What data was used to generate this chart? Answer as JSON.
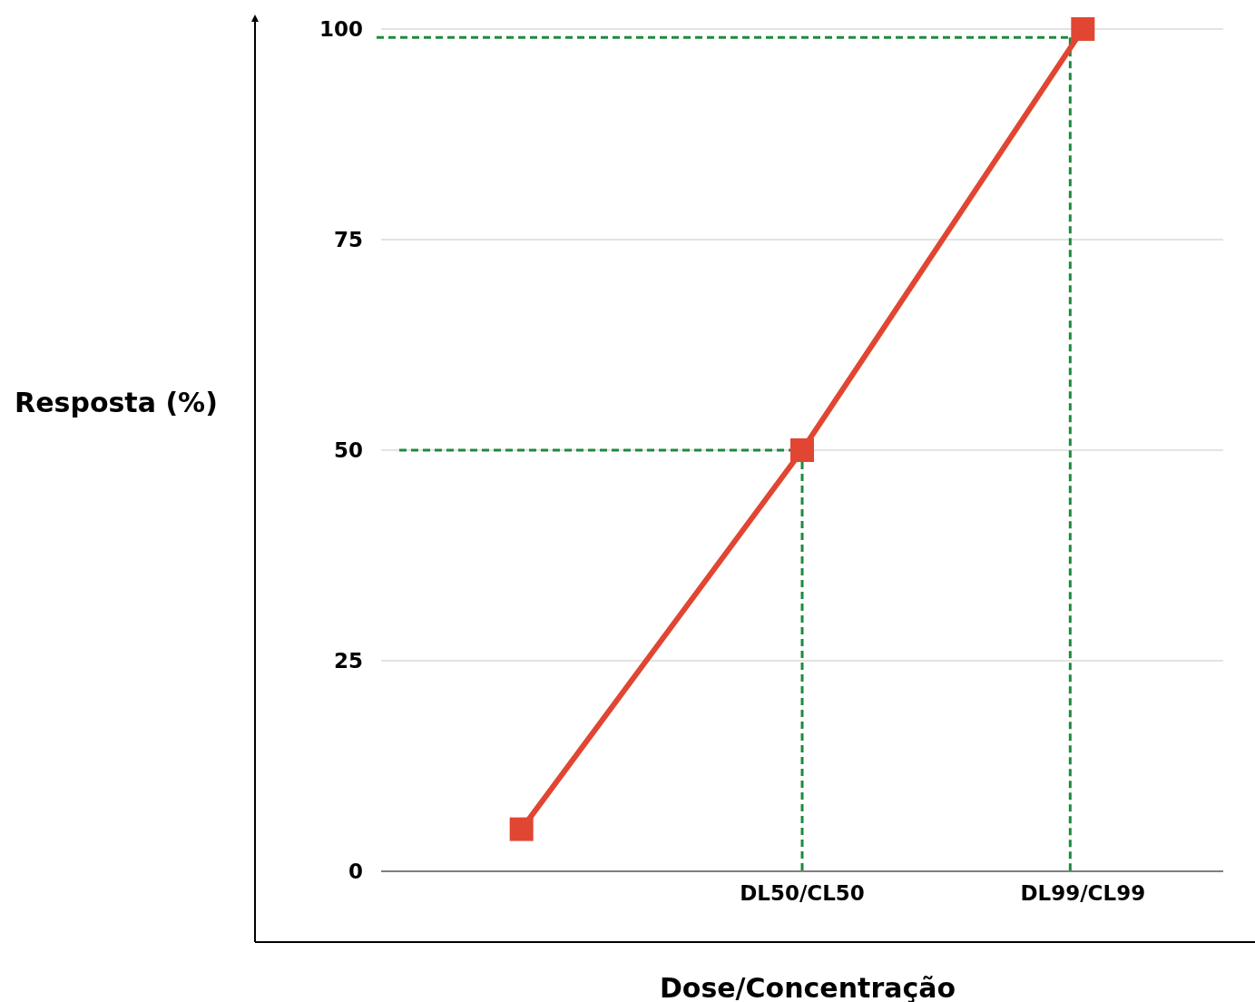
{
  "chart_data": {
    "type": "line",
    "xlabel": "Dose/Concentração",
    "ylabel": "Resposta (%)",
    "categories": [
      null,
      "DL50/CL50",
      "DL99/CL99"
    ],
    "series": [
      {
        "color": "#e04632",
        "values": [
          5,
          50,
          100
        ]
      }
    ],
    "ylim": [
      0,
      100
    ],
    "yticks": [
      0,
      25,
      50,
      75,
      100
    ],
    "grid": "y",
    "marker": "square",
    "line_style": "solid",
    "ref_lines": [
      {
        "axis": "y",
        "value": 50,
        "color": "#1e8a3c",
        "line_style": "dashed"
      },
      {
        "axis": "y",
        "value": 99,
        "color": "#1e8a3c",
        "line_style": "dashed"
      },
      {
        "axis": "x",
        "value": "DL50/CL50",
        "color": "#1e8a3c",
        "line_style": "dashed"
      },
      {
        "axis": "x",
        "value": "DL99/CL99",
        "color": "#1e8a3c",
        "line_style": "dashed"
      }
    ]
  }
}
